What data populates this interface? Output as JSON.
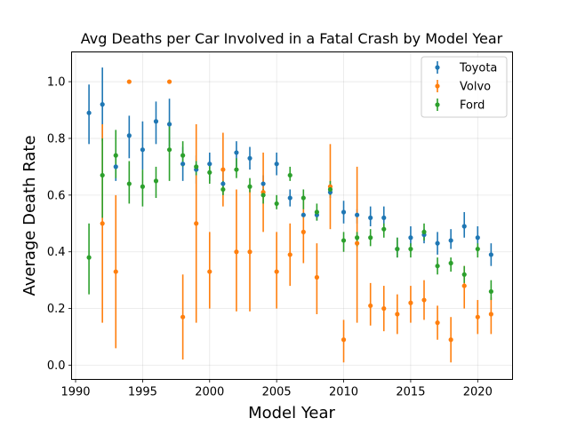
{
  "chart_data": {
    "type": "scatter",
    "title": "Avg Deaths per Car Involved in a Fatal Crash by Model Year",
    "xlabel": "Model Year",
    "ylabel": "Average Death Rate",
    "xlim": [
      1989.7,
      2022.6
    ],
    "ylim": [
      -0.05,
      1.105
    ],
    "xticks": [
      1990,
      1995,
      2000,
      2005,
      2010,
      2015,
      2020
    ],
    "yticks": [
      0.0,
      0.2,
      0.4,
      0.6,
      0.8,
      1.0
    ],
    "grid": true,
    "legend_position": "top-right",
    "error_bars": true,
    "series": [
      {
        "name": "Toyota",
        "color": "#1f77b4",
        "points": [
          {
            "x": 1991,
            "y": 0.89,
            "lo": 0.78,
            "hi": 0.99
          },
          {
            "x": 1992,
            "y": 0.92,
            "lo": 0.79,
            "hi": 1.05
          },
          {
            "x": 1993,
            "y": 0.7,
            "lo": 0.65,
            "hi": 0.75
          },
          {
            "x": 1994,
            "y": 0.81,
            "lo": 0.73,
            "hi": 0.88
          },
          {
            "x": 1995,
            "y": 0.76,
            "lo": 0.69,
            "hi": 0.86
          },
          {
            "x": 1996,
            "y": 0.86,
            "lo": 0.78,
            "hi": 0.93
          },
          {
            "x": 1997,
            "y": 0.85,
            "lo": 0.77,
            "hi": 0.94
          },
          {
            "x": 1998,
            "y": 0.71,
            "lo": 0.65,
            "hi": 0.77
          },
          {
            "x": 1999,
            "y": 0.69,
            "lo": 0.64,
            "hi": 0.74
          },
          {
            "x": 2000,
            "y": 0.71,
            "lo": 0.65,
            "hi": 0.75
          },
          {
            "x": 2001,
            "y": 0.64,
            "lo": 0.6,
            "hi": 0.69
          },
          {
            "x": 2002,
            "y": 0.75,
            "lo": 0.7,
            "hi": 0.79
          },
          {
            "x": 2003,
            "y": 0.73,
            "lo": 0.69,
            "hi": 0.77
          },
          {
            "x": 2004,
            "y": 0.64,
            "lo": 0.6,
            "hi": 0.67
          },
          {
            "x": 2005,
            "y": 0.71,
            "lo": 0.67,
            "hi": 0.75
          },
          {
            "x": 2006,
            "y": 0.59,
            "lo": 0.56,
            "hi": 0.62
          },
          {
            "x": 2007,
            "y": 0.53,
            "lo": 0.52,
            "hi": 0.54
          },
          {
            "x": 2008,
            "y": 0.53,
            "lo": 0.51,
            "hi": 0.55
          },
          {
            "x": 2009,
            "y": 0.61,
            "lo": 0.59,
            "hi": 0.63
          },
          {
            "x": 2010,
            "y": 0.54,
            "lo": 0.5,
            "hi": 0.58
          },
          {
            "x": 2011,
            "y": 0.53,
            "lo": 0.5,
            "hi": 0.55
          },
          {
            "x": 2012,
            "y": 0.52,
            "lo": 0.49,
            "hi": 0.56
          },
          {
            "x": 2013,
            "y": 0.52,
            "lo": 0.48,
            "hi": 0.56
          },
          {
            "x": 2014,
            "y": 0.41,
            "lo": 0.38,
            "hi": 0.45
          },
          {
            "x": 2015,
            "y": 0.45,
            "lo": 0.42,
            "hi": 0.49
          },
          {
            "x": 2016,
            "y": 0.46,
            "lo": 0.43,
            "hi": 0.48
          },
          {
            "x": 2017,
            "y": 0.43,
            "lo": 0.39,
            "hi": 0.47
          },
          {
            "x": 2018,
            "y": 0.44,
            "lo": 0.41,
            "hi": 0.48
          },
          {
            "x": 2019,
            "y": 0.49,
            "lo": 0.45,
            "hi": 0.54
          },
          {
            "x": 2020,
            "y": 0.45,
            "lo": 0.41,
            "hi": 0.49
          },
          {
            "x": 2021,
            "y": 0.39,
            "lo": 0.35,
            "hi": 0.43
          }
        ]
      },
      {
        "name": "Volvo",
        "color": "#ff7f0e",
        "points": [
          {
            "x": 1992,
            "y": 0.5,
            "lo": 0.15,
            "hi": 0.85
          },
          {
            "x": 1993,
            "y": 0.33,
            "lo": 0.06,
            "hi": 0.6
          },
          {
            "x": 1994,
            "y": 1.0,
            "lo": 1.0,
            "hi": 1.0
          },
          {
            "x": 1997,
            "y": 1.0,
            "lo": 1.0,
            "hi": 1.0
          },
          {
            "x": 1998,
            "y": 0.17,
            "lo": 0.02,
            "hi": 0.32
          },
          {
            "x": 1999,
            "y": 0.5,
            "lo": 0.15,
            "hi": 0.85
          },
          {
            "x": 2000,
            "y": 0.33,
            "lo": 0.2,
            "hi": 0.47
          },
          {
            "x": 2001,
            "y": 0.69,
            "lo": 0.56,
            "hi": 0.82
          },
          {
            "x": 2002,
            "y": 0.4,
            "lo": 0.19,
            "hi": 0.62
          },
          {
            "x": 2003,
            "y": 0.4,
            "lo": 0.19,
            "hi": 0.62
          },
          {
            "x": 2004,
            "y": 0.61,
            "lo": 0.47,
            "hi": 0.75
          },
          {
            "x": 2005,
            "y": 0.33,
            "lo": 0.2,
            "hi": 0.47
          },
          {
            "x": 2006,
            "y": 0.39,
            "lo": 0.28,
            "hi": 0.5
          },
          {
            "x": 2007,
            "y": 0.47,
            "lo": 0.36,
            "hi": 0.58
          },
          {
            "x": 2008,
            "y": 0.31,
            "lo": 0.18,
            "hi": 0.43
          },
          {
            "x": 2009,
            "y": 0.63,
            "lo": 0.48,
            "hi": 0.78
          },
          {
            "x": 2010,
            "y": 0.09,
            "lo": 0.01,
            "hi": 0.16
          },
          {
            "x": 2011,
            "y": 0.43,
            "lo": 0.15,
            "hi": 0.7
          },
          {
            "x": 2012,
            "y": 0.21,
            "lo": 0.14,
            "hi": 0.29
          },
          {
            "x": 2013,
            "y": 0.2,
            "lo": 0.12,
            "hi": 0.28
          },
          {
            "x": 2014,
            "y": 0.18,
            "lo": 0.11,
            "hi": 0.25
          },
          {
            "x": 2015,
            "y": 0.22,
            "lo": 0.15,
            "hi": 0.28
          },
          {
            "x": 2016,
            "y": 0.23,
            "lo": 0.16,
            "hi": 0.3
          },
          {
            "x": 2017,
            "y": 0.15,
            "lo": 0.09,
            "hi": 0.21
          },
          {
            "x": 2018,
            "y": 0.09,
            "lo": 0.01,
            "hi": 0.17
          },
          {
            "x": 2019,
            "y": 0.28,
            "lo": 0.2,
            "hi": 0.35
          },
          {
            "x": 2020,
            "y": 0.17,
            "lo": 0.11,
            "hi": 0.23
          },
          {
            "x": 2021,
            "y": 0.18,
            "lo": 0.11,
            "hi": 0.24
          }
        ]
      },
      {
        "name": "Ford",
        "color": "#2ca02c",
        "points": [
          {
            "x": 1991,
            "y": 0.38,
            "lo": 0.25,
            "hi": 0.5
          },
          {
            "x": 1992,
            "y": 0.67,
            "lo": 0.52,
            "hi": 0.8
          },
          {
            "x": 1993,
            "y": 0.74,
            "lo": 0.66,
            "hi": 0.83
          },
          {
            "x": 1994,
            "y": 0.64,
            "lo": 0.57,
            "hi": 0.72
          },
          {
            "x": 1995,
            "y": 0.63,
            "lo": 0.56,
            "hi": 0.69
          },
          {
            "x": 1996,
            "y": 0.65,
            "lo": 0.59,
            "hi": 0.7
          },
          {
            "x": 1997,
            "y": 0.76,
            "lo": 0.65,
            "hi": 0.86
          },
          {
            "x": 1998,
            "y": 0.74,
            "lo": 0.7,
            "hi": 0.79
          },
          {
            "x": 1999,
            "y": 0.7,
            "lo": 0.67,
            "hi": 0.72
          },
          {
            "x": 2000,
            "y": 0.68,
            "lo": 0.64,
            "hi": 0.71
          },
          {
            "x": 2001,
            "y": 0.62,
            "lo": 0.6,
            "hi": 0.65
          },
          {
            "x": 2002,
            "y": 0.69,
            "lo": 0.66,
            "hi": 0.73
          },
          {
            "x": 2003,
            "y": 0.63,
            "lo": 0.61,
            "hi": 0.66
          },
          {
            "x": 2004,
            "y": 0.6,
            "lo": 0.57,
            "hi": 0.62
          },
          {
            "x": 2005,
            "y": 0.57,
            "lo": 0.55,
            "hi": 0.6
          },
          {
            "x": 2006,
            "y": 0.67,
            "lo": 0.65,
            "hi": 0.7
          },
          {
            "x": 2007,
            "y": 0.59,
            "lo": 0.55,
            "hi": 0.62
          },
          {
            "x": 2008,
            "y": 0.54,
            "lo": 0.51,
            "hi": 0.57
          },
          {
            "x": 2009,
            "y": 0.62,
            "lo": 0.6,
            "hi": 0.65
          },
          {
            "x": 2010,
            "y": 0.44,
            "lo": 0.4,
            "hi": 0.47
          },
          {
            "x": 2011,
            "y": 0.45,
            "lo": 0.42,
            "hi": 0.47
          },
          {
            "x": 2012,
            "y": 0.45,
            "lo": 0.42,
            "hi": 0.48
          },
          {
            "x": 2013,
            "y": 0.48,
            "lo": 0.45,
            "hi": 0.5
          },
          {
            "x": 2014,
            "y": 0.41,
            "lo": 0.38,
            "hi": 0.45
          },
          {
            "x": 2015,
            "y": 0.41,
            "lo": 0.38,
            "hi": 0.43
          },
          {
            "x": 2016,
            "y": 0.47,
            "lo": 0.44,
            "hi": 0.5
          },
          {
            "x": 2017,
            "y": 0.35,
            "lo": 0.32,
            "hi": 0.38
          },
          {
            "x": 2018,
            "y": 0.36,
            "lo": 0.33,
            "hi": 0.38
          },
          {
            "x": 2019,
            "y": 0.32,
            "lo": 0.29,
            "hi": 0.35
          },
          {
            "x": 2020,
            "y": 0.41,
            "lo": 0.38,
            "hi": 0.43
          },
          {
            "x": 2021,
            "y": 0.26,
            "lo": 0.23,
            "hi": 0.3
          }
        ]
      }
    ]
  }
}
